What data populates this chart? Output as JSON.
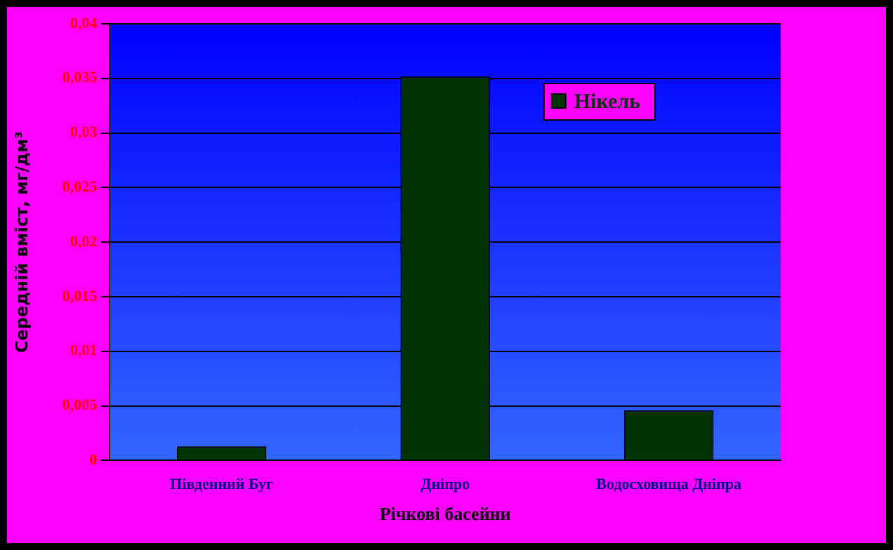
{
  "chart_data": {
    "type": "bar",
    "xlabel": "Річкові басейни",
    "ylabel": "Середній вміст, мг/дм³",
    "categories": [
      "Південний Буг",
      "Дніпро",
      "Водосховища Дніпра"
    ],
    "series": [
      {
        "name": "Нікель",
        "color": "#003300",
        "values": [
          0.0013,
          0.0352,
          0.0046
        ]
      }
    ],
    "ylim": [
      0,
      0.04
    ],
    "yticks": [
      {
        "value": 0,
        "label": "0"
      },
      {
        "value": 0.005,
        "label": "0,005"
      },
      {
        "value": 0.01,
        "label": "0,01"
      },
      {
        "value": 0.015,
        "label": "0,015"
      },
      {
        "value": 0.02,
        "label": "0,02"
      },
      {
        "value": 0.025,
        "label": "0,025"
      },
      {
        "value": 0.03,
        "label": "0,03"
      },
      {
        "value": 0.035,
        "label": "0,035"
      },
      {
        "value": 0.04,
        "label": "0,04"
      }
    ],
    "grid": "y",
    "legend": "top right"
  }
}
